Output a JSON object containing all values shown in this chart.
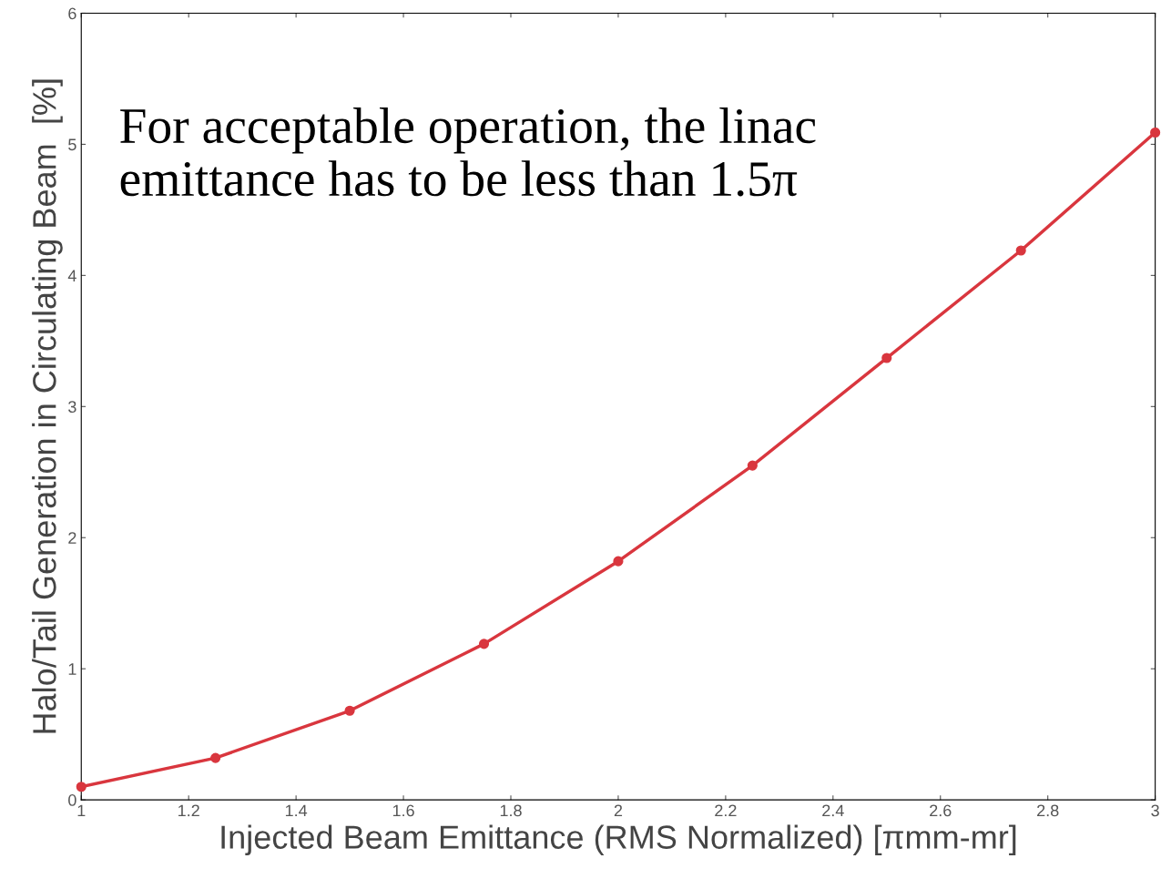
{
  "chart_data": {
    "type": "line",
    "xlabel": "Injected Beam Emittance (RMS Normalized) [πmm-mr]",
    "ylabel": "Halo/Tail Generation in Circulating Beam  [%]",
    "x": [
      1,
      1.25,
      1.5,
      1.75,
      2,
      2.25,
      2.5,
      2.75,
      3
    ],
    "series": [
      {
        "color": "#d9363e",
        "values": [
          0.1,
          0.32,
          0.68,
          1.19,
          1.82,
          2.55,
          3.37,
          4.19,
          5.09
        ]
      }
    ],
    "xlim": [
      1,
      3
    ],
    "xticks": [
      1,
      1.2,
      1.4,
      1.6,
      1.8,
      2,
      2.2,
      2.4,
      2.6,
      2.8,
      3
    ],
    "ylim": [
      0,
      6
    ],
    "yticks": [
      0,
      1,
      2,
      3,
      4,
      5,
      6
    ],
    "annotations": [
      "For acceptable operation, the linac emittance has to be less than 1.5π"
    ],
    "grid": false,
    "marker": "circle",
    "line_style": "solid"
  }
}
